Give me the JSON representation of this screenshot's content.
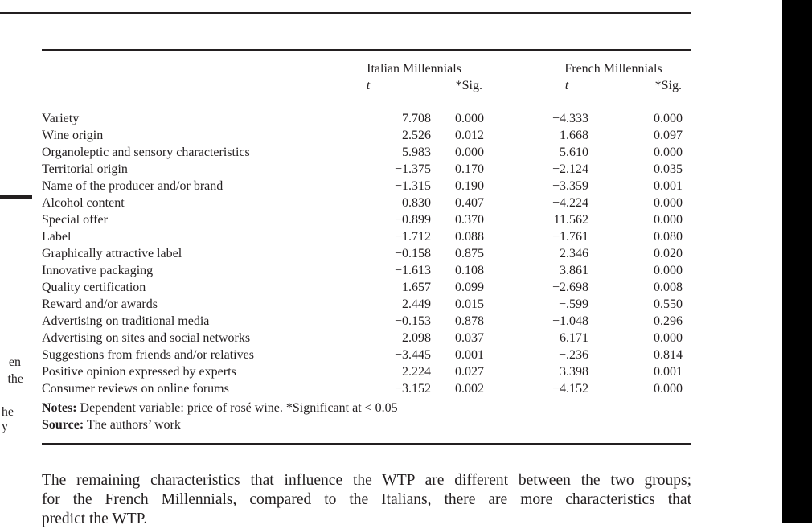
{
  "margin_fragments": [
    "en",
    "the",
    "he",
    "y"
  ],
  "table": {
    "groups": [
      "Italian Millennials",
      "French Millennials"
    ],
    "subheaders": [
      "t",
      "*Sig.",
      "t",
      "*Sig."
    ],
    "rows": [
      {
        "label": "Variety",
        "it_t": "7.708",
        "it_sig": "0.000",
        "fr_t": "−4.333",
        "fr_sig": "0.000"
      },
      {
        "label": "Wine origin",
        "it_t": "2.526",
        "it_sig": "0.012",
        "fr_t": "1.668",
        "fr_sig": "0.097"
      },
      {
        "label": "Organoleptic and sensory characteristics",
        "it_t": "5.983",
        "it_sig": "0.000",
        "fr_t": "5.610",
        "fr_sig": "0.000"
      },
      {
        "label": "Territorial origin",
        "it_t": "−1.375",
        "it_sig": "0.170",
        "fr_t": "−2.124",
        "fr_sig": "0.035"
      },
      {
        "label": "Name of the producer and/or brand",
        "it_t": "−1.315",
        "it_sig": "0.190",
        "fr_t": "−3.359",
        "fr_sig": "0.001"
      },
      {
        "label": "Alcohol content",
        "it_t": "0.830",
        "it_sig": "0.407",
        "fr_t": "−4.224",
        "fr_sig": "0.000"
      },
      {
        "label": "Special offer",
        "it_t": "−0.899",
        "it_sig": "0.370",
        "fr_t": "11.562",
        "fr_sig": "0.000"
      },
      {
        "label": "Label",
        "it_t": "−1.712",
        "it_sig": "0.088",
        "fr_t": "−1.761",
        "fr_sig": "0.080"
      },
      {
        "label": "Graphically attractive label",
        "it_t": "−0.158",
        "it_sig": "0.875",
        "fr_t": "2.346",
        "fr_sig": "0.020"
      },
      {
        "label": "Innovative packaging",
        "it_t": "−1.613",
        "it_sig": "0.108",
        "fr_t": "3.861",
        "fr_sig": "0.000"
      },
      {
        "label": "Quality certification",
        "it_t": "1.657",
        "it_sig": "0.099",
        "fr_t": "−2.698",
        "fr_sig": "0.008"
      },
      {
        "label": "Reward and/or awards",
        "it_t": "2.449",
        "it_sig": "0.015",
        "fr_t": "−.599",
        "fr_sig": "0.550"
      },
      {
        "label": "Advertising on traditional media",
        "it_t": "−0.153",
        "it_sig": "0.878",
        "fr_t": "−1.048",
        "fr_sig": "0.296"
      },
      {
        "label": "Advertising on sites and social networks",
        "it_t": "2.098",
        "it_sig": "0.037",
        "fr_t": "6.171",
        "fr_sig": "0.000"
      },
      {
        "label": "Suggestions from friends and/or relatives",
        "it_t": "−3.445",
        "it_sig": "0.001",
        "fr_t": "−.236",
        "fr_sig": "0.814"
      },
      {
        "label": "Positive opinion expressed by experts",
        "it_t": "2.224",
        "it_sig": "0.027",
        "fr_t": "3.398",
        "fr_sig": "0.001"
      },
      {
        "label": "Consumer reviews on online forums",
        "it_t": "−3.152",
        "it_sig": "0.002",
        "fr_t": "−4.152",
        "fr_sig": "0.000"
      }
    ],
    "notes_label": "Notes:",
    "notes_text": " Dependent variable: price of rosé wine. *Significant at  <  0.05",
    "source_label": "Source:",
    "source_text": " The authors’ work"
  },
  "body_lines": [
    "The remaining characteristics that influence the WTP are different between the two groups;",
    "for the French Millennials, compared to the Italians, there are more characteristics that",
    "predict the WTP."
  ]
}
